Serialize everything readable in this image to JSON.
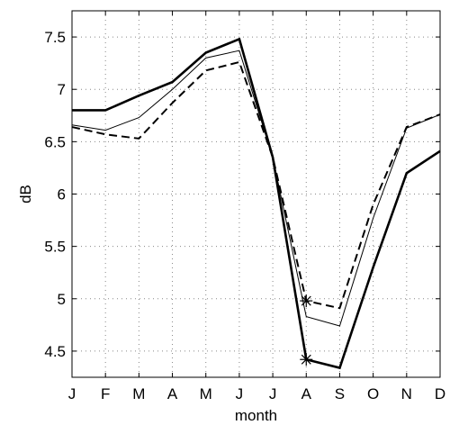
{
  "chart_data": {
    "type": "line",
    "title": "",
    "xlabel": "month",
    "ylabel": "dB",
    "categories": [
      "J",
      "F",
      "M",
      "A",
      "M",
      "J",
      "J",
      "A",
      "S",
      "O",
      "N",
      "D"
    ],
    "ylim": [
      4.25,
      7.75
    ],
    "yticks": [
      4.5,
      5,
      5.5,
      6,
      6.5,
      7,
      7.5
    ],
    "grid": true,
    "grid_style": "dotted",
    "legend": "none",
    "series": [
      {
        "style": "thick-solid",
        "values": [
          6.8,
          6.8,
          6.94,
          7.07,
          7.35,
          7.48,
          6.35,
          4.42,
          4.34,
          5.3,
          6.2,
          6.41
        ],
        "markers": [
          {
            "x_index": 7,
            "symbol": "*",
            "value": 4.42
          }
        ]
      },
      {
        "style": "thin-solid",
        "values": [
          6.66,
          6.61,
          6.73,
          7.0,
          7.3,
          7.37,
          6.35,
          4.83,
          4.74,
          5.77,
          6.63,
          6.76
        ]
      },
      {
        "style": "dashed",
        "values": [
          6.64,
          6.57,
          6.53,
          6.87,
          7.18,
          7.26,
          6.35,
          4.98,
          4.91,
          5.9,
          6.64,
          6.76
        ],
        "markers": [
          {
            "x_index": 7,
            "symbol": "*",
            "value": 4.98
          }
        ]
      }
    ],
    "colors": {
      "lines": "#000000",
      "grid": "#888888"
    }
  }
}
